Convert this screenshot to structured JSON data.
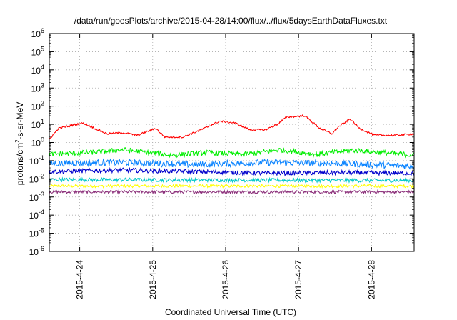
{
  "chart_data": {
    "type": "line",
    "title": "/data/run/goesPlots/archive/2015-04-28/14:00/flux/../flux/5daysEarthDataFluxes.txt",
    "xlabel": "Coordinated Universal Time (UTC)",
    "ylabel": {
      "main": "protons/cm",
      "sup": "2",
      "rest": "-s-sr-MeV"
    },
    "yscale": "log",
    "ylim": [
      1e-06,
      1000000.0
    ],
    "y_ticks": [
      {
        "value": 1e-06,
        "base": "10",
        "exp": "-6"
      },
      {
        "value": 1e-05,
        "base": "10",
        "exp": "-5"
      },
      {
        "value": 0.0001,
        "base": "10",
        "exp": "-4"
      },
      {
        "value": 0.001,
        "base": "10",
        "exp": "-3"
      },
      {
        "value": 0.01,
        "base": "10",
        "exp": "-2"
      },
      {
        "value": 0.1,
        "base": "10",
        "exp": "-1"
      },
      {
        "value": 1.0,
        "base": "10",
        "exp": "0"
      },
      {
        "value": 10.0,
        "base": "10",
        "exp": "1"
      },
      {
        "value": 100.0,
        "base": "10",
        "exp": "2"
      },
      {
        "value": 1000.0,
        "base": "10",
        "exp": "3"
      },
      {
        "value": 10000.0,
        "base": "10",
        "exp": "4"
      },
      {
        "value": 100000.0,
        "base": "10",
        "exp": "5"
      },
      {
        "value": 1000000.0,
        "base": "10",
        "exp": "6"
      }
    ],
    "x_ticks": [
      "2015-4-24",
      "2015-4-25",
      "2015-4-26",
      "2015-4-27",
      "2015-4-28"
    ],
    "xlim": [
      "2015-04-23T14:00",
      "2015-04-28T14:00"
    ],
    "grid": true,
    "legend": "none",
    "series": [
      {
        "color": "#ff0000",
        "noise": 0.05,
        "x": [
          "2015-04-23T14:00",
          "2015-04-23T17:00",
          "2015-04-24T01:00",
          "2015-04-24T09:00",
          "2015-04-24T14:00",
          "2015-04-24T19:00",
          "2015-04-25T01:00",
          "2015-04-25T04:00",
          "2015-04-25T10:00",
          "2015-04-25T17:00",
          "2015-04-25T22:00",
          "2015-04-26T03:00",
          "2015-04-26T08:00",
          "2015-04-26T13:00",
          "2015-04-26T17:00",
          "2015-04-26T20:00",
          "2015-04-27T02:00",
          "2015-04-27T07:00",
          "2015-04-27T11:00",
          "2015-04-27T13:00",
          "2015-04-27T17:00",
          "2015-04-27T20:00",
          "2015-04-28T01:00",
          "2015-04-28T08:00",
          "2015-04-28T14:00"
        ],
        "y": [
          1.5,
          6,
          12,
          3,
          3.5,
          2.5,
          6,
          2,
          2,
          6,
          15,
          12,
          5,
          5,
          10,
          25,
          30,
          6,
          3,
          7,
          20,
          6,
          2.5,
          2.5,
          3
        ]
      },
      {
        "color": "#00ee00",
        "noise": 0.14,
        "x": [
          "2015-04-23T14:00",
          "2015-04-24T06:00",
          "2015-04-24T14:00",
          "2015-04-25T06:00",
          "2015-04-25T18:00",
          "2015-04-26T06:00",
          "2015-04-26T18:00",
          "2015-04-27T06:00",
          "2015-04-27T18:00",
          "2015-04-28T06:00",
          "2015-04-28T14:00"
        ],
        "y": [
          0.22,
          0.3,
          0.4,
          0.2,
          0.28,
          0.22,
          0.4,
          0.22,
          0.38,
          0.26,
          0.2
        ]
      },
      {
        "color": "#0b84ff",
        "noise": 0.18,
        "x": [
          "2015-04-23T14:00",
          "2015-04-24T14:00",
          "2015-04-25T14:00",
          "2015-04-26T14:00",
          "2015-04-27T14:00",
          "2015-04-28T14:00"
        ],
        "y": [
          0.07,
          0.08,
          0.06,
          0.08,
          0.07,
          0.05
        ]
      },
      {
        "color": "#0000cc",
        "noise": 0.12,
        "x": [
          "2015-04-23T14:00",
          "2015-04-24T14:00",
          "2015-04-25T14:00",
          "2015-04-26T14:00",
          "2015-04-27T14:00",
          "2015-04-28T14:00"
        ],
        "y": [
          0.025,
          0.03,
          0.025,
          0.02,
          0.022,
          0.02
        ]
      },
      {
        "color": "#00c8c8",
        "noise": 0.1,
        "x": [
          "2015-04-23T14:00",
          "2015-04-28T14:00"
        ],
        "y": [
          0.009,
          0.008
        ]
      },
      {
        "color": "#ffff00",
        "noise": 0.08,
        "x": [
          "2015-04-23T14:00",
          "2015-04-28T14:00"
        ],
        "y": [
          0.004,
          0.004
        ]
      },
      {
        "color": "#8b2f7a",
        "noise": 0.08,
        "x": [
          "2015-04-23T14:00",
          "2015-04-28T14:00"
        ],
        "y": [
          0.0019,
          0.0019
        ]
      }
    ]
  }
}
